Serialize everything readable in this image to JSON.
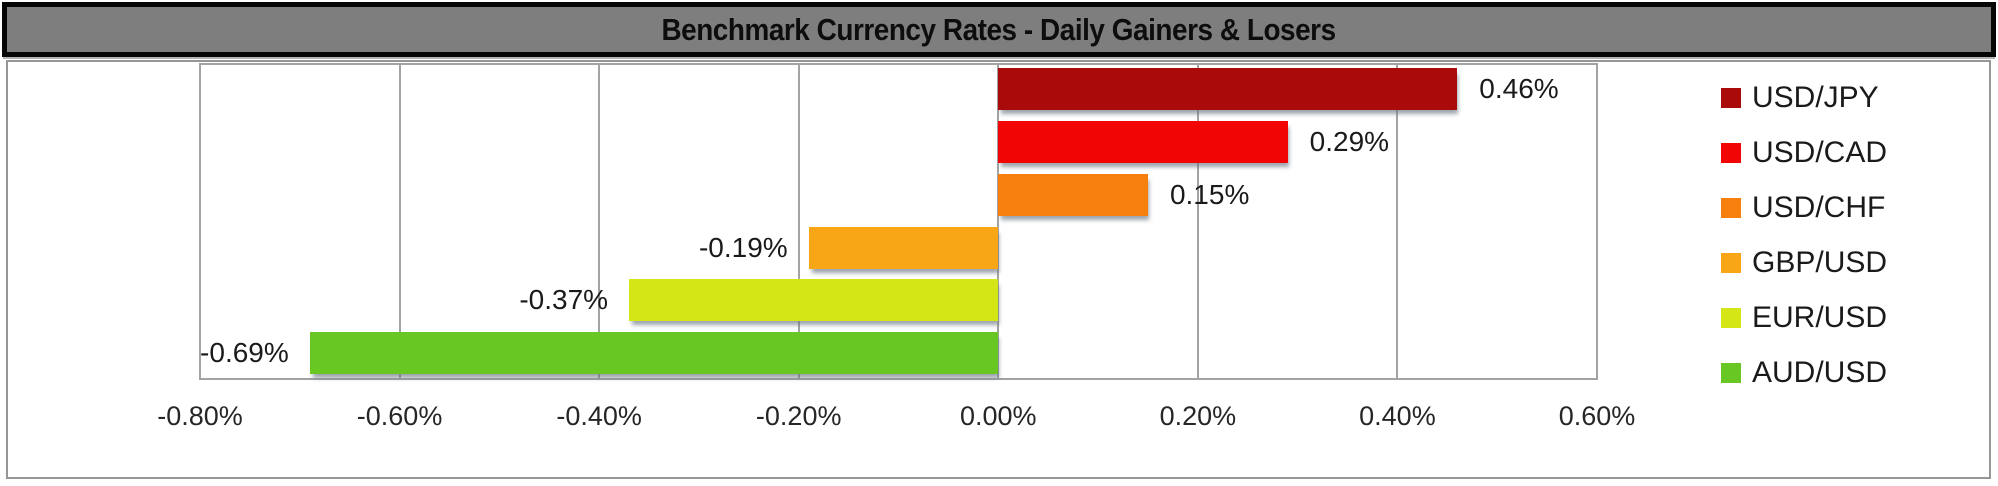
{
  "title": "Benchmark Currency Rates - Daily Gainers & Losers",
  "colors": {
    "title_bar_bg": "#7e7e7e",
    "title_bar_border": "#060606",
    "frame_border": "#969696",
    "gridline": "#a3a3a3",
    "label_text": "#1a1a1a",
    "tick_text": "#262626"
  },
  "chart_data": {
    "type": "bar",
    "orientation": "horizontal",
    "title": "Benchmark Currency Rates - Daily Gainers & Losers",
    "xlabel": "",
    "ylabel": "",
    "xlim": [
      -0.8,
      0.6
    ],
    "tick_step": 0.2,
    "grid": true,
    "legend_position": "right",
    "x_tick_labels": [
      "-0.80%",
      "-0.60%",
      "-0.40%",
      "-0.20%",
      "0.00%",
      "0.20%",
      "0.40%",
      "0.60%"
    ],
    "series": [
      {
        "name": "USD/JPY",
        "value": 0.46,
        "label": "0.46%",
        "color": "#aa0a0a"
      },
      {
        "name": "USD/CAD",
        "value": 0.29,
        "label": "0.29%",
        "color": "#f10505"
      },
      {
        "name": "USD/CHF",
        "value": 0.15,
        "label": "0.15%",
        "color": "#f67f0e"
      },
      {
        "name": "GBP/USD",
        "value": -0.19,
        "label": "-0.19%",
        "color": "#f9a616"
      },
      {
        "name": "EUR/USD",
        "value": -0.37,
        "label": "-0.37%",
        "color": "#d5e617"
      },
      {
        "name": "AUD/USD",
        "value": -0.69,
        "label": "-0.69%",
        "color": "#68c723"
      }
    ]
  }
}
